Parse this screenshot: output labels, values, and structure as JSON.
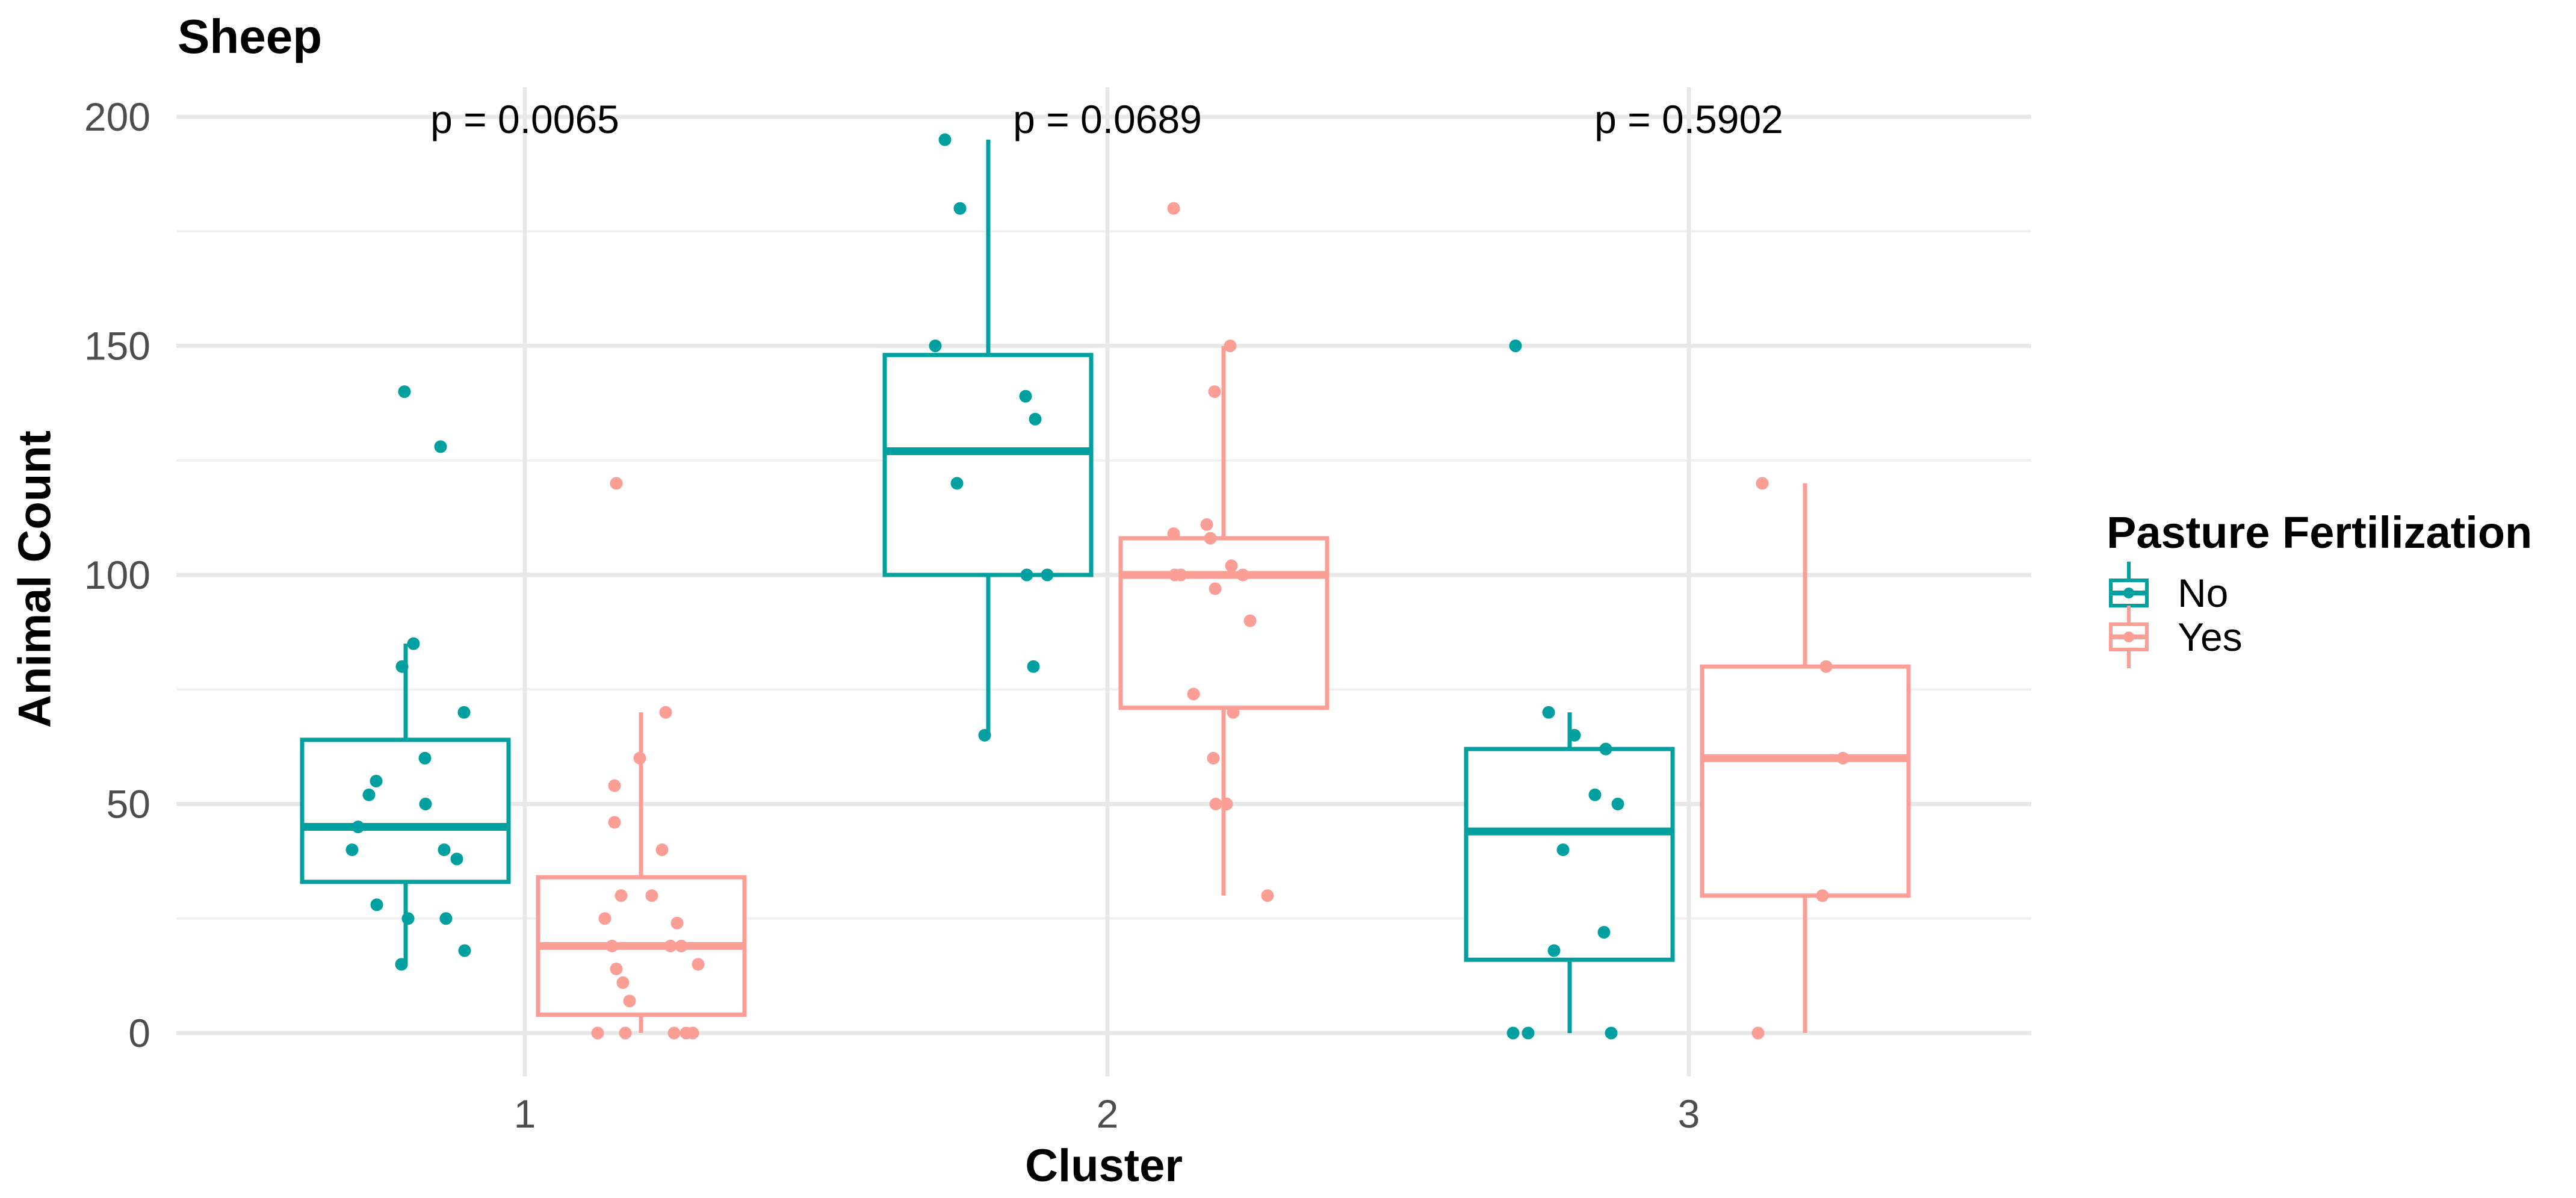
{
  "page": {
    "background": "#FFFFFF"
  },
  "chart_data": {
    "type": "boxplot",
    "title": "Sheep",
    "xlabel": "Cluster",
    "ylabel": "Animal Count",
    "x_categories": [
      "1",
      "2",
      "3"
    ],
    "y_ticks": [
      0,
      50,
      100,
      150,
      200
    ],
    "ylim": [
      0,
      200
    ],
    "grid": {
      "major": [
        0,
        50,
        100,
        150,
        200
      ],
      "minor": [
        25,
        75,
        125,
        175
      ],
      "vertical_at_categories": true
    },
    "legend": {
      "title": "Pasture Fertilization",
      "position": "right",
      "entries": [
        {
          "label": "No",
          "color": "#00A0A0"
        },
        {
          "label": "Yes",
          "color": "#FA9E96"
        }
      ]
    },
    "annotations": [
      {
        "text": "p = 0.0065",
        "cluster": "1"
      },
      {
        "text": "p = 0.0689",
        "cluster": "2"
      },
      {
        "text": "p = 0.5902",
        "cluster": "3"
      }
    ],
    "series": [
      {
        "cluster": "1",
        "group": "No",
        "color": "#00A0A0",
        "box": {
          "q1": 33,
          "median": 45,
          "q3": 64,
          "whisker_low": 15,
          "whisker_high": 85
        },
        "points": [
          {
            "x": 672,
            "v": 140
          },
          {
            "x": 732,
            "v": 128
          },
          {
            "x": 687,
            "v": 85
          },
          {
            "x": 668,
            "v": 80
          },
          {
            "x": 771,
            "v": 70
          },
          {
            "x": 706,
            "v": 60
          },
          {
            "x": 625,
            "v": 55
          },
          {
            "x": 613,
            "v": 52
          },
          {
            "x": 707,
            "v": 50
          },
          {
            "x": 595,
            "v": 45
          },
          {
            "x": 585,
            "v": 40
          },
          {
            "x": 738,
            "v": 40
          },
          {
            "x": 759,
            "v": 38
          },
          {
            "x": 626,
            "v": 28
          },
          {
            "x": 678,
            "v": 25
          },
          {
            "x": 741,
            "v": 25
          },
          {
            "x": 772,
            "v": 18
          },
          {
            "x": 667,
            "v": 15
          }
        ]
      },
      {
        "cluster": "1",
        "group": "Yes",
        "color": "#FA9E96",
        "box": {
          "q1": 4,
          "median": 19,
          "q3": 34,
          "whisker_low": 0,
          "whisker_high": 70
        },
        "points": [
          {
            "x": 1024,
            "v": 120
          },
          {
            "x": 1106,
            "v": 70
          },
          {
            "x": 1063,
            "v": 60
          },
          {
            "x": 1021,
            "v": 54
          },
          {
            "x": 1021,
            "v": 46
          },
          {
            "x": 1100,
            "v": 40
          },
          {
            "x": 1032,
            "v": 30
          },
          {
            "x": 1083,
            "v": 30
          },
          {
            "x": 1005,
            "v": 25
          },
          {
            "x": 1125,
            "v": 24
          },
          {
            "x": 1017,
            "v": 19
          },
          {
            "x": 1114,
            "v": 19
          },
          {
            "x": 1132,
            "v": 19
          },
          {
            "x": 1160,
            "v": 15
          },
          {
            "x": 1024,
            "v": 14
          },
          {
            "x": 1035,
            "v": 11
          },
          {
            "x": 1046,
            "v": 7
          },
          {
            "x": 993,
            "v": 0
          },
          {
            "x": 1039,
            "v": 0
          },
          {
            "x": 1120,
            "v": 0
          },
          {
            "x": 1140,
            "v": 0
          },
          {
            "x": 1151,
            "v": 0
          }
        ]
      },
      {
        "cluster": "2",
        "group": "No",
        "color": "#00A0A0",
        "box": {
          "q1": 100,
          "median": 127,
          "q3": 148,
          "whisker_low": 65,
          "whisker_high": 195
        },
        "points": [
          {
            "x": 1570,
            "v": 195
          },
          {
            "x": 1595,
            "v": 180
          },
          {
            "x": 1554,
            "v": 150
          },
          {
            "x": 1704,
            "v": 139
          },
          {
            "x": 1720,
            "v": 134
          },
          {
            "x": 1590,
            "v": 120
          },
          {
            "x": 1706,
            "v": 100
          },
          {
            "x": 1740,
            "v": 100
          },
          {
            "x": 1717,
            "v": 80
          },
          {
            "x": 1636,
            "v": 65
          }
        ]
      },
      {
        "cluster": "2",
        "group": "Yes",
        "color": "#FA9E96",
        "box": {
          "q1": 71,
          "median": 100,
          "q3": 108,
          "whisker_low": 30,
          "whisker_high": 150
        },
        "points": [
          {
            "x": 1950,
            "v": 180
          },
          {
            "x": 2044,
            "v": 150
          },
          {
            "x": 2018,
            "v": 140
          },
          {
            "x": 2005,
            "v": 111
          },
          {
            "x": 1950,
            "v": 109
          },
          {
            "x": 2011,
            "v": 108
          },
          {
            "x": 2046,
            "v": 102
          },
          {
            "x": 1952,
            "v": 100
          },
          {
            "x": 1962,
            "v": 100
          },
          {
            "x": 2065,
            "v": 100
          },
          {
            "x": 2019,
            "v": 97
          },
          {
            "x": 2077,
            "v": 90
          },
          {
            "x": 1983,
            "v": 74
          },
          {
            "x": 2049,
            "v": 70
          },
          {
            "x": 2016,
            "v": 60
          },
          {
            "x": 2020,
            "v": 50
          },
          {
            "x": 2038,
            "v": 50
          },
          {
            "x": 2106,
            "v": 30
          }
        ]
      },
      {
        "cluster": "3",
        "group": "No",
        "color": "#00A0A0",
        "box": {
          "q1": 16,
          "median": 44,
          "q3": 62,
          "whisker_low": 0,
          "whisker_high": 70
        },
        "points": [
          {
            "x": 2518,
            "v": 150
          },
          {
            "x": 2573,
            "v": 70
          },
          {
            "x": 2616,
            "v": 65
          },
          {
            "x": 2668,
            "v": 62
          },
          {
            "x": 2650,
            "v": 52
          },
          {
            "x": 2688,
            "v": 50
          },
          {
            "x": 2597,
            "v": 40
          },
          {
            "x": 2665,
            "v": 22
          },
          {
            "x": 2582,
            "v": 18
          },
          {
            "x": 2514,
            "v": 0
          },
          {
            "x": 2539,
            "v": 0
          },
          {
            "x": 2677,
            "v": 0
          }
        ]
      },
      {
        "cluster": "3",
        "group": "Yes",
        "color": "#FA9E96",
        "box": {
          "q1": 30,
          "median": 60,
          "q3": 80,
          "whisker_low": 0,
          "whisker_high": 120
        },
        "points": [
          {
            "x": 2928,
            "v": 120
          },
          {
            "x": 3034,
            "v": 80
          },
          {
            "x": 3062,
            "v": 60
          },
          {
            "x": 3028,
            "v": 30
          },
          {
            "x": 2921,
            "v": 0
          }
        ]
      }
    ],
    "style_colors": {
      "axis_text": "#4D4D4D",
      "title_text": "#000000",
      "grid_major": "#E8E8E8",
      "grid_minor": "#F0F0F0",
      "panel_background": "#FFFFFF",
      "box_fill": "#FFFFFF"
    }
  }
}
